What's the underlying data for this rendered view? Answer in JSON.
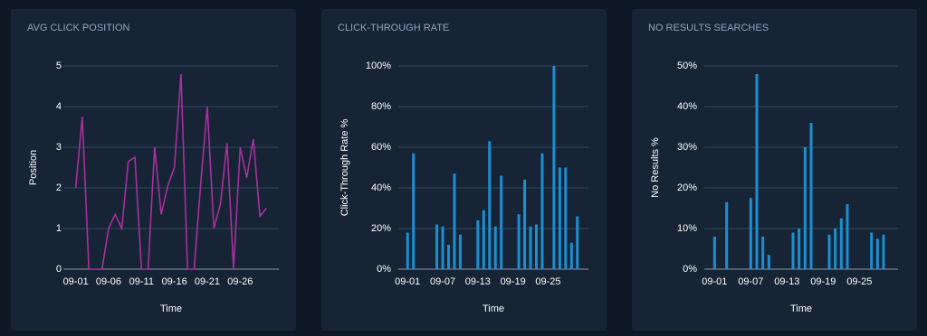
{
  "chart_data": [
    {
      "type": "line",
      "title": "AVG CLICK POSITION",
      "x_label": "Time",
      "y_label": "Position",
      "color": "#a9309d",
      "categories": [
        "09-01",
        null,
        null,
        null,
        null,
        "09-06",
        null,
        null,
        null,
        null,
        "09-11",
        null,
        null,
        null,
        null,
        "09-16",
        null,
        null,
        null,
        null,
        "09-21",
        null,
        null,
        null,
        null,
        "09-26",
        null,
        null,
        null,
        null
      ],
      "values": [
        2,
        3.75,
        0,
        0,
        0,
        1,
        1.35,
        1,
        2.65,
        2.75,
        0,
        0,
        3,
        1.35,
        2.05,
        2.5,
        4.8,
        0,
        0,
        2.1,
        4,
        1,
        1.6,
        3.1,
        0,
        3,
        2.25,
        3.2,
        1.3,
        1.5
      ],
      "ylim": [
        0,
        5
      ],
      "yticks": [
        0,
        1,
        2,
        3,
        4,
        5
      ],
      "grid": true
    },
    {
      "type": "bar",
      "title": "CLICK-THROUGH RATE",
      "x_label": "Time",
      "y_label": "Click-Through Rate %",
      "color": "#1b8fd2",
      "categories": [
        "09-01",
        null,
        null,
        null,
        null,
        null,
        "09-07",
        null,
        null,
        null,
        null,
        null,
        "09-13",
        null,
        null,
        null,
        null,
        null,
        "09-19",
        null,
        null,
        null,
        null,
        null,
        "09-25",
        null,
        null,
        null,
        null,
        null
      ],
      "values": [
        18,
        57,
        0,
        0,
        0,
        22,
        21,
        12,
        47,
        17,
        0,
        0,
        24,
        29,
        63,
        21,
        46,
        0,
        0,
        27,
        44,
        21,
        22,
        57,
        0,
        100,
        50,
        50,
        13,
        26
      ],
      "ylim": [
        0,
        100
      ],
      "yticks": [
        {
          "value": 0,
          "label": "0%"
        },
        {
          "value": 20,
          "label": "20%"
        },
        {
          "value": 40,
          "label": "40%"
        },
        {
          "value": 60,
          "label": "60%"
        },
        {
          "value": 80,
          "label": "80%"
        },
        {
          "value": 100,
          "label": "100%"
        }
      ],
      "grid": true
    },
    {
      "type": "bar",
      "title": "NO RESULTS SEARCHES",
      "x_label": "Time",
      "y_label": "No Results %",
      "color": "#1b8fd2",
      "categories": [
        "09-01",
        null,
        null,
        null,
        null,
        null,
        "09-07",
        null,
        null,
        null,
        null,
        null,
        "09-13",
        null,
        null,
        null,
        null,
        null,
        "09-19",
        null,
        null,
        null,
        null,
        null,
        "09-25",
        null,
        null,
        null,
        null,
        null
      ],
      "values": [
        8,
        0,
        16.5,
        0,
        0,
        0,
        17.5,
        48,
        8,
        3.5,
        0,
        0,
        0,
        9,
        10,
        30,
        36,
        0,
        0,
        8.5,
        10,
        12.5,
        16,
        0,
        0,
        0,
        9,
        7.5,
        8.5,
        0
      ],
      "ylim": [
        0,
        50
      ],
      "yticks": [
        {
          "value": 0,
          "label": "0%"
        },
        {
          "value": 10,
          "label": "10%"
        },
        {
          "value": 20,
          "label": "20%"
        },
        {
          "value": 30,
          "label": "30%"
        },
        {
          "value": 40,
          "label": "40%"
        },
        {
          "value": 50,
          "label": "50%"
        }
      ],
      "grid": true
    }
  ]
}
